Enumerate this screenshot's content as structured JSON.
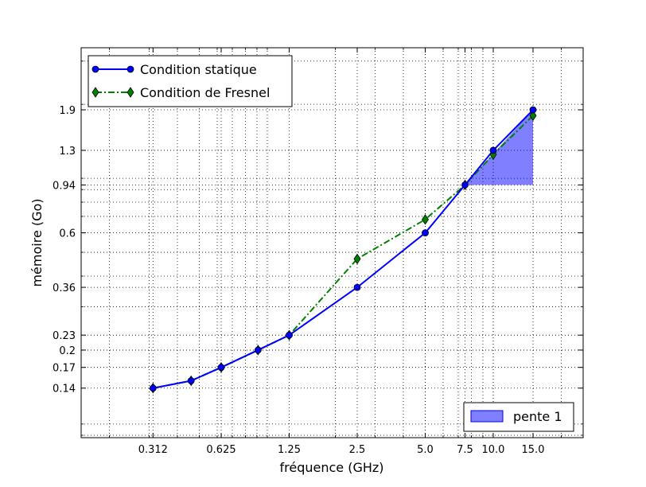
{
  "chart_data": {
    "type": "line",
    "xscale": "log",
    "yscale": "log",
    "xlabel": "fréquence (GHz)",
    "ylabel": "mémoire (Go)",
    "xlim": [
      0.15,
      25
    ],
    "ylim": [
      0.088,
      3.4
    ],
    "grid": true,
    "x_ticks": [
      0.312,
      0.625,
      1.25,
      2.5,
      5.0,
      7.5,
      10.0,
      15.0
    ],
    "x_tick_labels": [
      "0.312",
      "0.625",
      "1.25",
      "2.5",
      "5.0",
      "7.5",
      "10.0",
      "15.0"
    ],
    "y_ticks": [
      0.14,
      0.17,
      0.2,
      0.23,
      0.36,
      0.6,
      0.94,
      1.3,
      1.9
    ],
    "y_tick_labels": [
      "0.14",
      "0.17",
      "0.2",
      "0.23",
      "0.36",
      "0.6",
      "0.94",
      "1.3",
      "1.9"
    ],
    "series": [
      {
        "name": "Condition statique",
        "color": "#0000ff",
        "linestyle": "solid",
        "marker": "circle",
        "x": [
          0.312,
          0.46,
          0.625,
          0.91,
          1.25,
          2.5,
          5.0,
          7.5,
          10.0,
          15.0
        ],
        "y": [
          0.14,
          0.15,
          0.17,
          0.2,
          0.23,
          0.36,
          0.6,
          0.94,
          1.3,
          1.9
        ]
      },
      {
        "name": "Condition de Fresnel",
        "color": "#008000",
        "linestyle": "dashdot",
        "marker": "diamond",
        "x": [
          0.312,
          0.46,
          0.625,
          0.91,
          1.25,
          2.5,
          5.0,
          7.5,
          10.0,
          15.0
        ],
        "y": [
          0.14,
          0.15,
          0.17,
          0.2,
          0.23,
          0.47,
          0.68,
          0.94,
          1.25,
          1.8
        ]
      }
    ],
    "slope_triangle": {
      "label": "pente 1",
      "color": "#0000ff",
      "vertices": [
        [
          7.5,
          0.94
        ],
        [
          15.0,
          1.9
        ],
        [
          15.0,
          0.94
        ]
      ]
    },
    "legend_location": "upper left",
    "slope_legend_location": "lower right"
  }
}
